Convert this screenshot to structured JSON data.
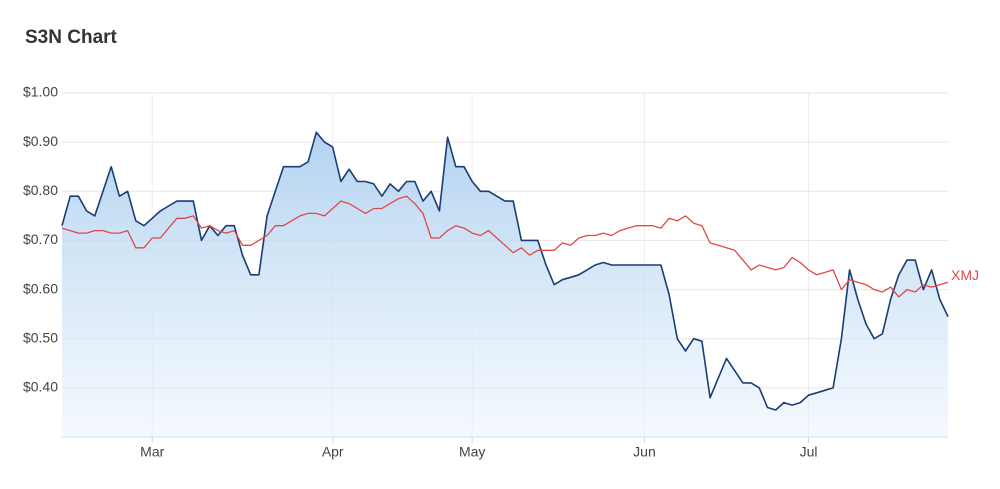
{
  "chart_data": {
    "type": "line",
    "title": "S3N Chart",
    "categories": [
      null,
      null,
      null,
      null,
      null,
      null,
      null,
      null,
      null,
      null,
      null,
      "Mar",
      null,
      null,
      null,
      null,
      null,
      null,
      null,
      null,
      null,
      null,
      null,
      null,
      null,
      null,
      null,
      null,
      null,
      null,
      null,
      null,
      null,
      "Apr",
      null,
      null,
      null,
      null,
      null,
      null,
      null,
      null,
      null,
      null,
      null,
      null,
      null,
      null,
      null,
      null,
      "May",
      null,
      null,
      null,
      null,
      null,
      null,
      null,
      null,
      null,
      null,
      null,
      null,
      null,
      null,
      null,
      null,
      null,
      null,
      null,
      null,
      "Jun",
      null,
      null,
      null,
      null,
      null,
      null,
      null,
      null,
      null,
      null,
      null,
      null,
      null,
      null,
      null,
      null,
      null,
      null,
      null,
      "Jul",
      null,
      null,
      null,
      null,
      null,
      null,
      null,
      null,
      null,
      null,
      null,
      null,
      null,
      null,
      null,
      null,
      null
    ],
    "series": [
      {
        "color": "#1a3e73",
        "area": true,
        "values": [
          0.73,
          0.79,
          0.79,
          0.76,
          0.75,
          0.8,
          0.85,
          0.79,
          0.8,
          0.74,
          0.73,
          0.745,
          0.76,
          0.77,
          0.78,
          0.78,
          0.78,
          0.7,
          0.73,
          0.71,
          0.73,
          0.73,
          0.67,
          0.63,
          0.63,
          0.75,
          0.8,
          0.85,
          0.85,
          0.85,
          0.86,
          0.92,
          0.9,
          0.89,
          0.82,
          0.845,
          0.82,
          0.82,
          0.815,
          0.79,
          0.815,
          0.8,
          0.82,
          0.82,
          0.78,
          0.8,
          0.76,
          0.91,
          0.85,
          0.85,
          0.82,
          0.8,
          0.8,
          0.79,
          0.78,
          0.78,
          0.7,
          0.7,
          0.7,
          0.65,
          0.61,
          0.62,
          0.625,
          0.63,
          0.64,
          0.65,
          0.655,
          0.65,
          0.65,
          0.65,
          0.65,
          0.65,
          0.65,
          0.65,
          0.59,
          0.5,
          0.475,
          0.5,
          0.495,
          0.38,
          0.42,
          0.46,
          0.435,
          0.41,
          0.41,
          0.4,
          0.36,
          0.355,
          0.37,
          0.365,
          0.37,
          0.385,
          0.39,
          0.395,
          0.4,
          0.5,
          0.64,
          0.58,
          0.53,
          0.5,
          0.51,
          0.58,
          0.63,
          0.66,
          0.66,
          0.6,
          0.64,
          0.58,
          0.545
        ]
      },
      {
        "name": "XMJ",
        "color": "#e04848",
        "area": false,
        "values": [
          0.725,
          0.72,
          0.715,
          0.715,
          0.72,
          0.72,
          0.715,
          0.715,
          0.72,
          0.685,
          0.685,
          0.705,
          0.705,
          0.725,
          0.745,
          0.745,
          0.75,
          0.725,
          0.73,
          0.72,
          0.715,
          0.72,
          0.69,
          0.69,
          0.7,
          0.71,
          0.73,
          0.73,
          0.74,
          0.75,
          0.755,
          0.755,
          0.75,
          0.765,
          0.78,
          0.775,
          0.765,
          0.755,
          0.765,
          0.765,
          0.775,
          0.785,
          0.79,
          0.775,
          0.755,
          0.705,
          0.705,
          0.72,
          0.73,
          0.725,
          0.715,
          0.71,
          0.72,
          0.705,
          0.69,
          0.675,
          0.685,
          0.67,
          0.68,
          0.68,
          0.68,
          0.695,
          0.69,
          0.705,
          0.71,
          0.71,
          0.715,
          0.71,
          0.72,
          0.725,
          0.73,
          0.73,
          0.73,
          0.725,
          0.745,
          0.74,
          0.75,
          0.735,
          0.73,
          0.695,
          0.69,
          0.685,
          0.68,
          0.66,
          0.64,
          0.65,
          0.645,
          0.64,
          0.645,
          0.665,
          0.655,
          0.64,
          0.63,
          0.635,
          0.64,
          0.6,
          0.62,
          0.615,
          0.61,
          0.6,
          0.595,
          0.605,
          0.585,
          0.6,
          0.595,
          0.61,
          0.605,
          0.61,
          0.615
        ]
      }
    ],
    "ylim": [
      0.3,
      1.0
    ],
    "yticks": [
      {
        "value": 0.4,
        "label": "$0.40"
      },
      {
        "value": 0.5,
        "label": "$0.50"
      },
      {
        "value": 0.6,
        "label": "$0.60"
      },
      {
        "value": 0.7,
        "label": "$0.70"
      },
      {
        "value": 0.8,
        "label": "$0.80"
      },
      {
        "value": 0.9,
        "label": "$0.90"
      },
      {
        "value": 1.0,
        "label": "$1.00"
      }
    ],
    "grid": true
  }
}
